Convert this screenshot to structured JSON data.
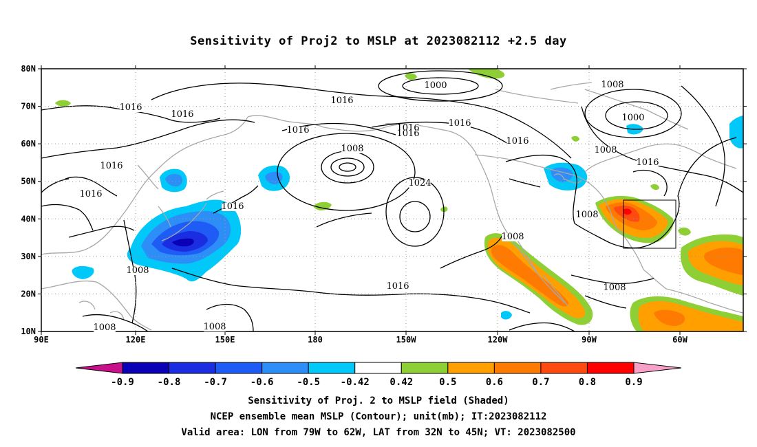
{
  "title": "Sensitivity of Proj2 to MSLP at 2023082112 +2.5 day",
  "lat_labels": [
    "80N",
    "70N",
    "60N",
    "50N",
    "40N",
    "30N",
    "20N",
    "10N"
  ],
  "lon_labels": [
    "90E",
    "120E",
    "150E",
    "180",
    "150W",
    "120W",
    "90W",
    "60W"
  ],
  "contour_labels": [
    {
      "text": "1000"
    },
    {
      "text": "1008"
    },
    {
      "text": "1000"
    },
    {
      "text": "1016"
    },
    {
      "text": "1016"
    },
    {
      "text": "1016"
    },
    {
      "text": "1016"
    },
    {
      "text": "1016"
    },
    {
      "text": "1016"
    },
    {
      "text": "1016"
    },
    {
      "text": "1016"
    },
    {
      "text": "1016"
    },
    {
      "text": "1016"
    },
    {
      "text": "1008"
    },
    {
      "text": "1024"
    },
    {
      "text": "1016"
    },
    {
      "text": "1016"
    },
    {
      "text": "1008"
    },
    {
      "text": "1008"
    },
    {
      "text": "1008"
    },
    {
      "text": "1008"
    },
    {
      "text": "1008"
    },
    {
      "text": "1008"
    },
    {
      "text": "1008"
    },
    {
      "text": "1016"
    }
  ],
  "colorbar": {
    "labels": [
      "-0.9",
      "-0.8",
      "-0.7",
      "-0.6",
      "-0.5",
      "-0.42",
      "0.42",
      "0.5",
      "0.6",
      "0.7",
      "0.8",
      "0.9"
    ],
    "colors": [
      "#0a00b5",
      "#1a2de0",
      "#1f5cf5",
      "#2e8ef8",
      "#00c8f8",
      "#ffffff",
      "#8ecf35",
      "#ffa000",
      "#ff7a00",
      "#ff4a10",
      "#ff0000"
    ],
    "low_end_color": "#c8108a",
    "high_end_color": "#f7a0c8"
  },
  "captions": {
    "line1": "Sensitivity of Proj. 2 to MSLP field (Shaded)",
    "line2": "NCEP ensemble mean MSLP (Contour); unit(mb); IT:2023082112",
    "line3": "Valid area: LON from 79W to 62W, LAT from 32N to 45N; VT: 2023082500"
  }
}
